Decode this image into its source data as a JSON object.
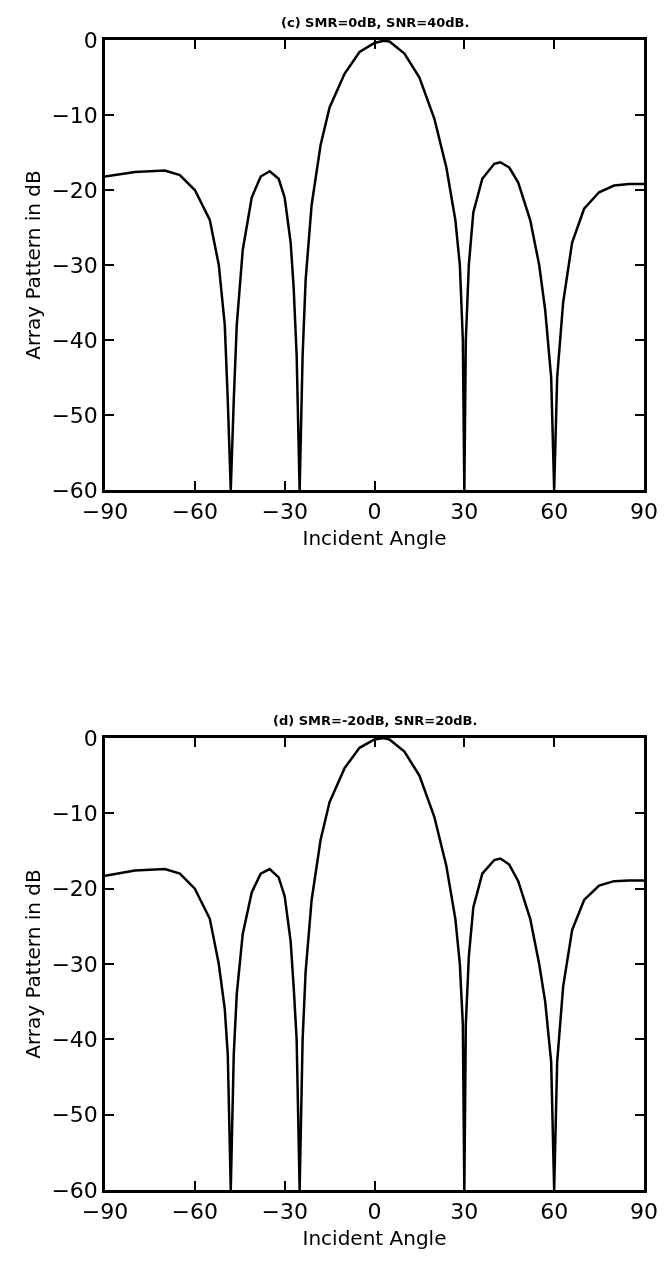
{
  "chart_data": [
    {
      "type": "line",
      "title": "(c) SMR=0dB, SNR=40dB.",
      "xlabel": "Incident Angle",
      "ylabel": "Array Pattern in dB",
      "xlim": [
        -90,
        90
      ],
      "xticks": [
        -90,
        -60,
        -30,
        0,
        30,
        60,
        90
      ],
      "ylim": [
        -60,
        0
      ],
      "yticks": [
        -60,
        -50,
        -40,
        -30,
        -20,
        -10,
        0
      ],
      "marker": "none",
      "line_style": "solid",
      "x": [
        -90,
        -80,
        -70,
        -65,
        -60,
        -55,
        -52,
        -50,
        -49,
        -48,
        -47,
        -46,
        -44,
        -41,
        -38,
        -35,
        -32,
        -30,
        -28,
        -27,
        -26,
        -25,
        -24,
        -23,
        -21,
        -18,
        -15,
        -10,
        -5,
        0,
        3,
        5,
        10,
        15,
        20,
        24,
        27,
        28.5,
        29.5,
        30,
        30.5,
        31.5,
        33,
        36,
        40,
        42,
        45,
        48,
        52,
        55,
        57,
        59,
        60,
        61,
        63,
        66,
        70,
        75,
        80,
        85,
        90
      ],
      "series": [
        {
          "color": "#000000",
          "values": [
            -18.2,
            -17.6,
            -17.4,
            -18,
            -20,
            -24,
            -30,
            -38,
            -48,
            -60,
            -48,
            -38,
            -28,
            -21,
            -18.2,
            -17.5,
            -18.5,
            -21,
            -27,
            -33,
            -42,
            -60,
            -42,
            -32,
            -22,
            -14,
            -9,
            -4.5,
            -1.6,
            -0.4,
            -0.1,
            -0.2,
            -1.8,
            -5,
            -10.5,
            -17,
            -24,
            -30,
            -40,
            -60,
            -40,
            -30,
            -23,
            -18.5,
            -16.5,
            -16.3,
            -17,
            -19,
            -24,
            -30,
            -36,
            -45,
            -60,
            -45,
            -35,
            -27,
            -22.5,
            -20.3,
            -19.4,
            -19.2,
            -19.2
          ]
        }
      ]
    },
    {
      "type": "line",
      "title": "(d) SMR=-20dB, SNR=20dB.",
      "xlabel": "Incident Angle",
      "ylabel": "Array Pattern in dB",
      "xlim": [
        -90,
        90
      ],
      "xticks": [
        -90,
        -60,
        -30,
        0,
        30,
        60,
        90
      ],
      "ylim": [
        -60,
        0
      ],
      "yticks": [
        -60,
        -50,
        -40,
        -30,
        -20,
        -10,
        0
      ],
      "marker": "none",
      "line_style": "solid",
      "x": [
        -90,
        -80,
        -70,
        -65,
        -60,
        -55,
        -52,
        -50,
        -49,
        -48,
        -47,
        -46,
        -44,
        -41,
        -38,
        -35,
        -32,
        -30,
        -28,
        -27,
        -26,
        -25,
        -24,
        -23,
        -21,
        -18,
        -15,
        -10,
        -5,
        0,
        3,
        5,
        10,
        15,
        20,
        24,
        27,
        28.5,
        29.5,
        30,
        30.5,
        31.5,
        33,
        36,
        40,
        42,
        45,
        48,
        52,
        55,
        57,
        59,
        60,
        61,
        63,
        66,
        70,
        75,
        80,
        85,
        90
      ],
      "series": [
        {
          "color": "#000000",
          "values": [
            -18.3,
            -17.6,
            -17.4,
            -18,
            -20,
            -24,
            -30,
            -36,
            -42,
            -60,
            -42,
            -34,
            -26,
            -20.5,
            -18,
            -17.4,
            -18.5,
            -21,
            -27,
            -33,
            -40,
            -60,
            -40,
            -31,
            -21.5,
            -13.5,
            -8.5,
            -4,
            -1.3,
            -0.2,
            0,
            -0.2,
            -1.8,
            -5,
            -10.5,
            -17,
            -24,
            -30,
            -38,
            -60,
            -38,
            -29,
            -22.5,
            -18,
            -16.2,
            -16,
            -16.8,
            -19,
            -24,
            -30,
            -35,
            -43,
            -60,
            -43,
            -33,
            -25.5,
            -21.5,
            -19.6,
            -19,
            -18.9,
            -18.9
          ]
        }
      ]
    }
  ]
}
